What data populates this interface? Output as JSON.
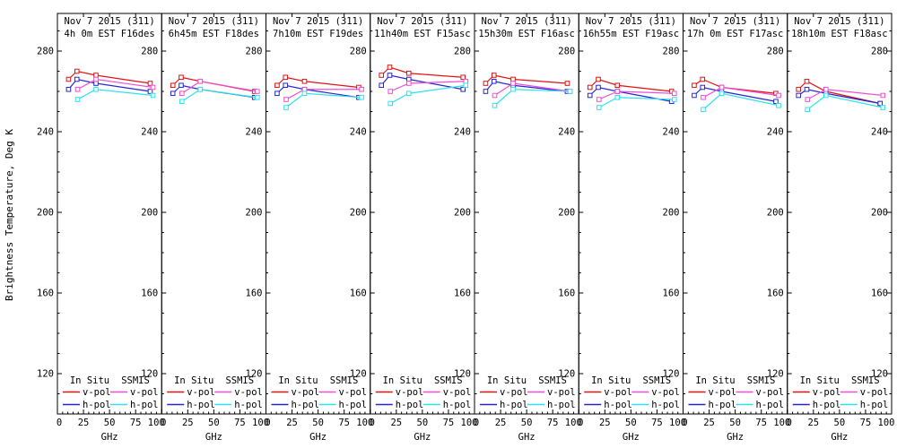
{
  "chart_data": {
    "type": "line",
    "title_line1": "Nov 7 2015 (311)",
    "ylabel": "Brightness Temperature, Deg K",
    "xlabel": "GHz",
    "xlim": [
      0,
      100
    ],
    "ylim": [
      100,
      300
    ],
    "xticks": [
      0,
      25,
      50,
      75,
      100
    ],
    "yticks": [
      120,
      160,
      200,
      240,
      280
    ],
    "x_minor_step_ghz": 5,
    "y_minor_step_k": 10,
    "grid": false,
    "marker": "open-square",
    "legend": {
      "position": "bottom-inside-each-panel",
      "col1_header": "In Situ",
      "col2_header": "SSMIS",
      "vpol_label": "v-pol",
      "hpol_label": "h-pol"
    },
    "colors": {
      "insitu_v": "#e01212",
      "insitu_h": "#2626cf",
      "ssmis_v": "#f04fd4",
      "ssmis_h": "#2ee1ef",
      "axis": "#000000",
      "background": "#ffffff"
    },
    "insitu_x_ghz": [
      10.7,
      18.7,
      37,
      89
    ],
    "ssmis_x_ghz": [
      19.35,
      37,
      91.655
    ],
    "panels": [
      {
        "subtitle": "4h 0m EST F16des",
        "insitu_v": [
          266,
          270,
          268,
          264
        ],
        "insitu_h": [
          261,
          266,
          264,
          260
        ],
        "ssmis_v": [
          261,
          266,
          262
        ],
        "ssmis_h": [
          256,
          261,
          258
        ]
      },
      {
        "subtitle": "6h45m EST F18des",
        "insitu_v": [
          263,
          267,
          265,
          260
        ],
        "insitu_h": [
          259,
          263,
          261,
          257
        ],
        "ssmis_v": [
          259,
          265,
          260
        ],
        "ssmis_h": [
          255,
          261,
          257
        ]
      },
      {
        "subtitle": "7h10m EST F19des",
        "insitu_v": [
          263,
          267,
          265,
          262
        ],
        "insitu_h": [
          259,
          263,
          261,
          257
        ],
        "ssmis_v": [
          256,
          261,
          261
        ],
        "ssmis_h": [
          252,
          259,
          257
        ]
      },
      {
        "subtitle": "11h40m EST F15asc",
        "insitu_v": [
          268,
          272,
          269,
          267
        ],
        "insitu_h": [
          263,
          268,
          266,
          261
        ],
        "ssmis_v": [
          260,
          264,
          265
        ],
        "ssmis_h": [
          254,
          259,
          263
        ]
      },
      {
        "subtitle": "15h30m EST F16asc",
        "insitu_v": [
          264,
          268,
          266,
          264
        ],
        "insitu_h": [
          260,
          265,
          263,
          260
        ],
        "ssmis_v": [
          258,
          264,
          260
        ],
        "ssmis_h": [
          253,
          261,
          260
        ]
      },
      {
        "subtitle": "16h55m EST F19asc",
        "insitu_v": [
          262,
          266,
          263,
          260
        ],
        "insitu_h": [
          258,
          262,
          260,
          255
        ],
        "ssmis_v": [
          256,
          260,
          259
        ],
        "ssmis_h": [
          252,
          257,
          256
        ]
      },
      {
        "subtitle": "17h 0m EST F17asc",
        "insitu_v": [
          263,
          266,
          262,
          259
        ],
        "insitu_h": [
          258,
          262,
          260,
          255
        ],
        "ssmis_v": [
          257,
          262,
          258
        ],
        "ssmis_h": [
          251,
          259,
          253
        ]
      },
      {
        "subtitle": "18h10m EST F18asc",
        "insitu_v": [
          261,
          265,
          260,
          254
        ],
        "insitu_h": [
          258,
          261,
          259,
          254
        ],
        "ssmis_v": [
          256,
          261,
          258
        ],
        "ssmis_h": [
          251,
          258,
          252
        ]
      }
    ]
  }
}
